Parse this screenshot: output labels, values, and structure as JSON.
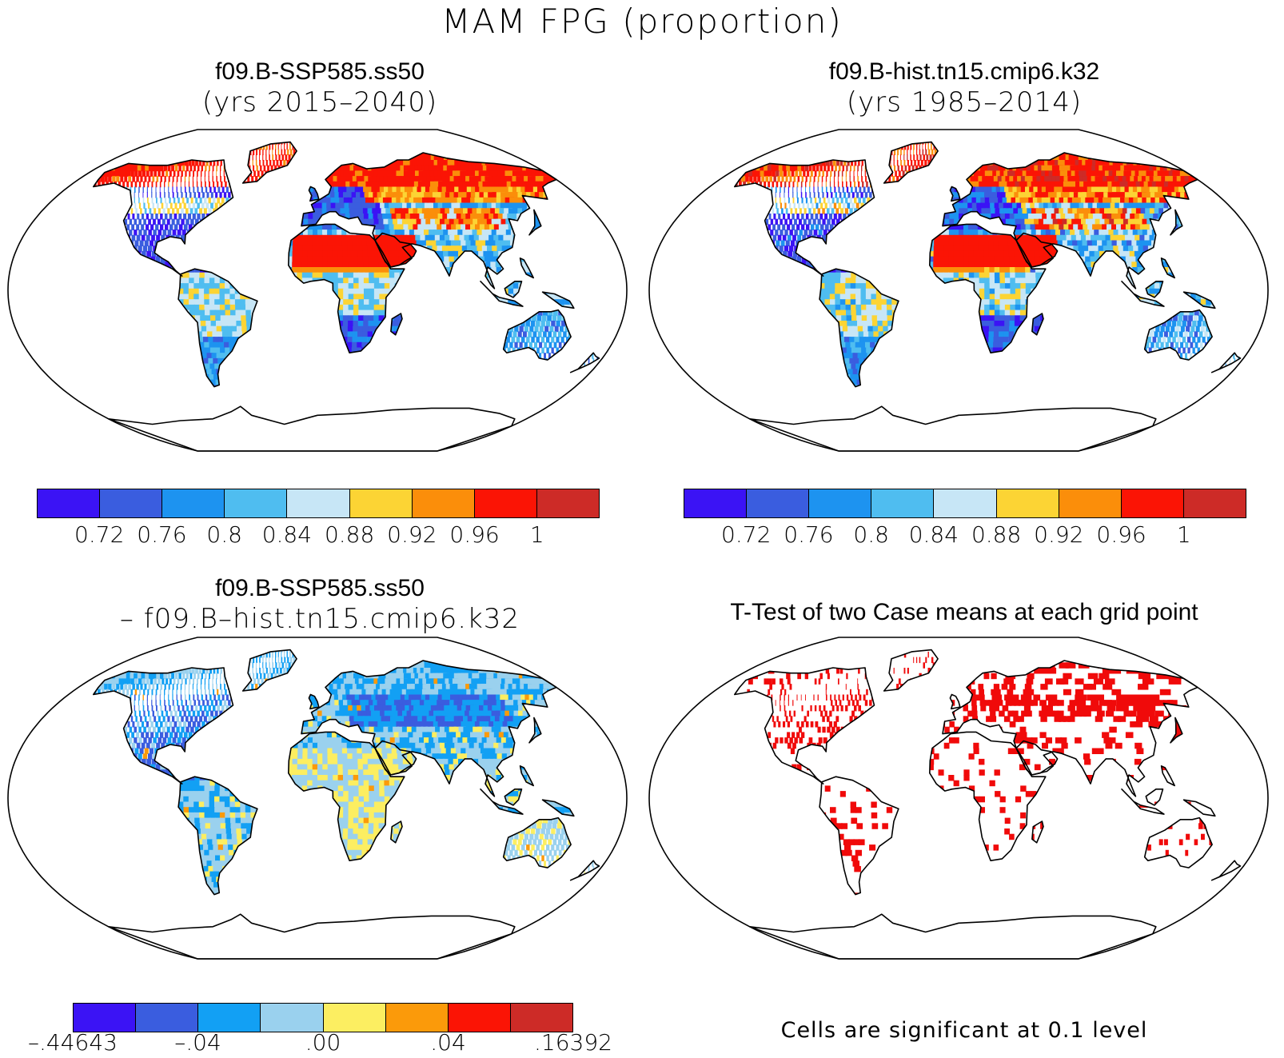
{
  "title": "MAM FPG (proportion)",
  "colors": {
    "abs_scale": [
      "#3b13f5",
      "#3a5ddf",
      "#1d93f0",
      "#4fbdf0",
      "#c7e6f6",
      "#fcd434",
      "#fb8e0a",
      "#fb1405",
      "#cd2b27"
    ],
    "diff_scale": [
      "#3b13f5",
      "#3a5ddf",
      "#12a0f4",
      "#9ad1ee",
      "#fcee61",
      "#fb9a0a",
      "#fb1405",
      "#cd2b27"
    ],
    "significant": "#f00a0a",
    "coast": "#000000"
  },
  "panels": {
    "top_left": {
      "case": "f09.B-SSP585.ss50",
      "years": "(yrs 2015–2040)",
      "colorbar_labels": [
        "0.72",
        "0.76",
        "0.8",
        "0.84",
        "0.88",
        "0.92",
        "0.96",
        "1"
      ]
    },
    "top_right": {
      "case": "f09.B-hist.tn15.cmip6.k32",
      "years": "(yrs 1985–2014)",
      "colorbar_labels": [
        "0.72",
        "0.76",
        "0.8",
        "0.84",
        "0.88",
        "0.92",
        "0.96",
        "1"
      ]
    },
    "bottom_left": {
      "case": "f09.B-SSP585.ss50",
      "minus_case": "– f09.B–hist.tn15.cmip6.k32",
      "colorbar_labels": [
        "–.44643",
        "–.04",
        ".00",
        ".04",
        ".16392"
      ]
    },
    "bottom_right": {
      "title": "T-Test of two Case means at each grid point",
      "note": "Cells are significant at 0.1 level"
    }
  }
}
